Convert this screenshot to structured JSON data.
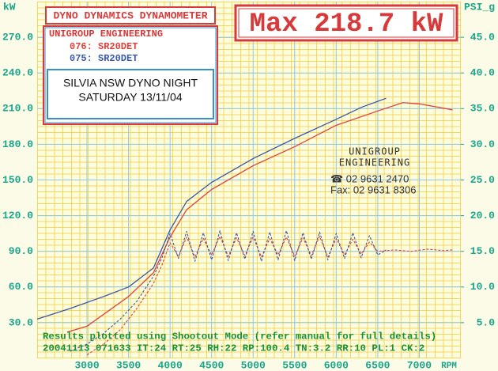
{
  "chart_data": {
    "type": "line",
    "title": "DYNO DYNAMICS DYNAMOMETER",
    "max_power_label": "Max 218.7 kW",
    "legend_title": "UNIGROUP ENGINEERING",
    "event": [
      "SILVIA NSW DYNO NIGHT",
      "SATURDAY 13/11/04"
    ],
    "logo": [
      "UNIGROUP",
      "ENGINEERING"
    ],
    "phone": "☎ 02 9631 2470",
    "fax": "Fax: 02 9631 8306",
    "footer": [
      "Results plotted using Shootout Mode (refer manual for full details)",
      "20041113 071633  IT:24 RT:25 RH:22 RP:100.4 TN:3.2 RR:10 PL:1 CK:2"
    ],
    "ylabel": "kW",
    "y2label": "PSI_g",
    "xlabel": "RPM",
    "xlim": [
      2400,
      7500
    ],
    "xticks": [
      3000,
      3500,
      4000,
      4500,
      5000,
      5500,
      6000,
      6500,
      7000
    ],
    "ylim": [
      0,
      300
    ],
    "yticks": [
      {
        "value": 30,
        "label": "30.0"
      },
      {
        "value": 60,
        "label": "60.0"
      },
      {
        "value": 90,
        "label": "90.0"
      },
      {
        "value": 120,
        "label": "120.0"
      },
      {
        "value": 150,
        "label": "150.0"
      },
      {
        "value": 180,
        "label": "180.0"
      },
      {
        "value": 210,
        "label": "210.0"
      },
      {
        "value": 240,
        "label": "240.0"
      },
      {
        "value": 270,
        "label": "270.0"
      }
    ],
    "y2lim": [
      0,
      50
    ],
    "y2ticks": [
      {
        "value": 5,
        "label": "5.0"
      },
      {
        "value": 10,
        "label": "10.0"
      },
      {
        "value": 15,
        "label": "15.0"
      },
      {
        "value": 20,
        "label": "20.0"
      },
      {
        "value": 25,
        "label": "25.0"
      },
      {
        "value": 30,
        "label": "30.0"
      },
      {
        "value": 35,
        "label": "35.0"
      },
      {
        "value": 40,
        "label": "40.0"
      },
      {
        "value": 45,
        "label": "45.0"
      }
    ],
    "grid": true,
    "series": [
      {
        "name": "076: SR20DET",
        "color": "#e0403a",
        "x": [
          2760,
          3000,
          3500,
          3800,
          4000,
          4200,
          4500,
          5000,
          5500,
          6000,
          6500,
          6800,
          7000,
          7400
        ],
        "values": [
          22,
          27,
          52,
          72,
          102,
          125,
          142,
          162,
          178,
          196,
          208,
          215,
          214,
          209
        ]
      },
      {
        "name": "075: SR20DET",
        "color": "#3b58a8",
        "x": [
          2400,
          2800,
          3200,
          3500,
          3800,
          4000,
          4200,
          4500,
          5000,
          5500,
          6000,
          6300,
          6600
        ],
        "values": [
          33,
          42,
          52,
          60,
          76,
          108,
          132,
          148,
          168,
          185,
          201,
          211,
          218.7
        ]
      },
      {
        "color": "#e0403a",
        "axis": "y2",
        "dashed": true,
        "x": [
          3000,
          3200,
          3400,
          3600,
          3800,
          3900,
          4000,
          4100,
          4200,
          4300,
          4400,
          4500,
          4600,
          4700,
          4800,
          4900,
          5000,
          5100,
          5200,
          5300,
          5400,
          5500,
          5600,
          5700,
          5800,
          5900,
          6000,
          6100,
          6200,
          6300,
          6400,
          6500,
          6700,
          6900,
          7100,
          7300,
          7400
        ],
        "values": [
          0.5,
          2,
          4,
          7,
          10.5,
          13,
          16.2,
          14.3,
          17,
          14.2,
          16.8,
          14.5,
          17.1,
          14.3,
          16.9,
          14.4,
          17,
          14.2,
          16.8,
          14.5,
          17,
          14.3,
          16.9,
          14.4,
          17.1,
          14.2,
          16.8,
          14.5,
          16.7,
          14.6,
          16.3,
          15,
          15.2,
          15,
          15.3,
          15.1,
          15.2
        ]
      },
      {
        "color": "#3b58a8",
        "axis": "y2",
        "dashed": true,
        "x": [
          2800,
          3000,
          3200,
          3400,
          3600,
          3800,
          3900,
          4000,
          4100,
          4200,
          4300,
          4400,
          4500,
          4600,
          4700,
          4800,
          4900,
          5000,
          5100,
          5200,
          5300,
          5400,
          5500,
          5600,
          5700,
          5800,
          5900,
          6000,
          6100,
          6200,
          6300,
          6400,
          6500,
          6600
        ],
        "values": [
          1,
          2,
          3.5,
          5.5,
          8,
          11.5,
          14,
          17.5,
          14,
          17.8,
          13.6,
          17.6,
          13.8,
          17.9,
          13.7,
          17.6,
          13.9,
          17.8,
          13.6,
          17.7,
          13.8,
          17.9,
          13.7,
          17.6,
          13.9,
          17.7,
          13.8,
          17.5,
          14,
          17.6,
          14.1,
          17.2,
          14.5,
          15.2
        ]
      }
    ]
  }
}
